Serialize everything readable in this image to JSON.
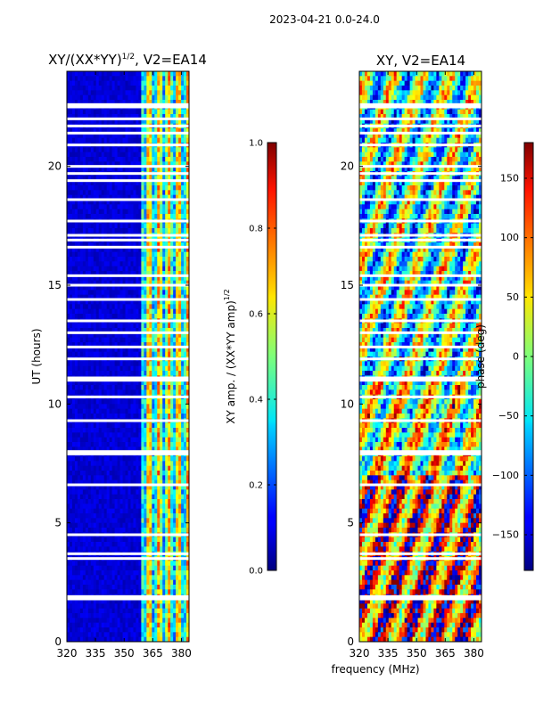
{
  "figure": {
    "suptitle": "2023-04-21 0.0-24.0",
    "shared_xlabel": "frequency (MHz)"
  },
  "chart_data": [
    {
      "type": "heatmap",
      "title_main": "XY/(XX*YY)",
      "title_exp": "1/2",
      "title_rest": ", V2=EA14",
      "ylabel": "UT (hours)",
      "xlim": [
        320,
        384
      ],
      "ylim": [
        0,
        24
      ],
      "xticks": [
        "320",
        "335",
        "350",
        "365",
        "380"
      ],
      "xtick_values": [
        320,
        335,
        350,
        365,
        380
      ],
      "yticks": [
        "0",
        "5",
        "10",
        "15",
        "20"
      ],
      "ytick_values": [
        0,
        5,
        10,
        15,
        20
      ],
      "flagged_channels_mhz": [
        320,
        359
      ],
      "blank_rows_ut": [
        1.8,
        1.9,
        3.5,
        3.7,
        4.5,
        6.6,
        7.9,
        8.0,
        9.3,
        10.3,
        11.0,
        11.1,
        11.9,
        12.4,
        13.0,
        13.5,
        14.4,
        15.0,
        15.4,
        16.6,
        16.9,
        17.1,
        17.7,
        18.6,
        19.4,
        19.7,
        20.0,
        20.9,
        21.4,
        21.7,
        22.0,
        22.5,
        22.6
      ],
      "colorbar": {
        "label_main": "XY amp. / (XX*YY amp)",
        "label_exp": "1/2",
        "ticks": [
          "0.0",
          "0.2",
          "0.4",
          "0.6",
          "0.8",
          "1.0"
        ],
        "tick_values": [
          0.0,
          0.2,
          0.4,
          0.6,
          0.8,
          1.0
        ],
        "range": [
          0,
          1
        ],
        "colormap": "jet"
      }
    },
    {
      "type": "heatmap",
      "title": "XY, V2=EA14",
      "xlim": [
        320,
        384
      ],
      "ylim": [
        0,
        24
      ],
      "xticks": [
        "320",
        "335",
        "350",
        "365",
        "380"
      ],
      "xtick_values": [
        320,
        335,
        350,
        365,
        380
      ],
      "yticks": [
        "0",
        "5",
        "10",
        "15",
        "20"
      ],
      "ytick_values": [
        0,
        5,
        10,
        15,
        20
      ],
      "blank_rows_ut": [
        1.8,
        1.9,
        3.5,
        3.7,
        4.5,
        6.6,
        7.9,
        8.0,
        9.3,
        10.3,
        11.0,
        11.1,
        11.9,
        12.4,
        13.0,
        13.5,
        14.4,
        15.0,
        15.4,
        16.6,
        16.9,
        17.1,
        17.7,
        18.6,
        19.4,
        19.7,
        20.0,
        20.9,
        21.4,
        21.7,
        22.0,
        22.5,
        22.6
      ],
      "colorbar": {
        "label": "phase (deg)",
        "ticks": [
          "150",
          "100",
          "50",
          "0",
          "−50",
          "−100",
          "−150"
        ],
        "tick_values": [
          150,
          100,
          50,
          0,
          -50,
          -100,
          -150
        ],
        "range": [
          -180,
          180
        ],
        "colormap": "jet"
      }
    }
  ]
}
